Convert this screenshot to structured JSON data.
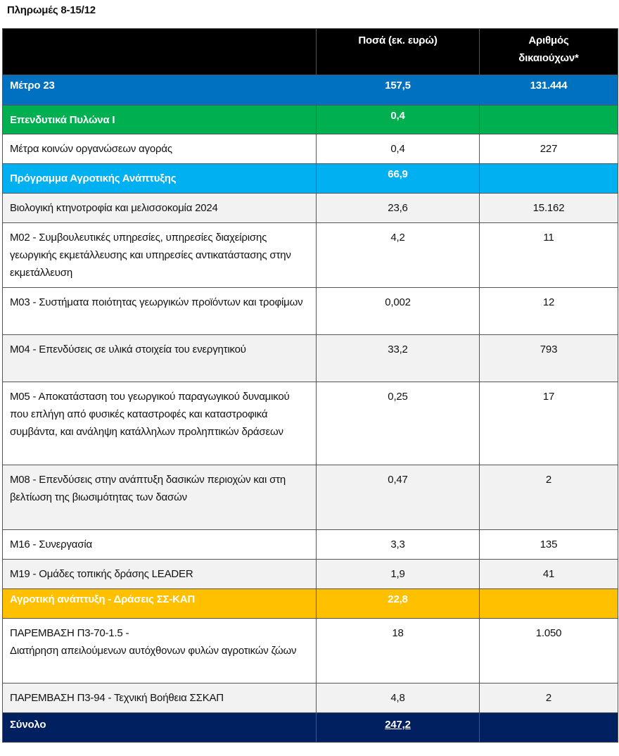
{
  "title": "Πληρωμές 8-15/12",
  "columns": [
    "",
    "Ποσά (εκ. ευρώ)",
    "Αριθμός δικαιούχων*"
  ],
  "colors": {
    "header": "#000000",
    "metro23": "#0070c0",
    "pillar1": "#00b050",
    "rural_program": "#00b0f0",
    "ss_kap": "#ffc000",
    "total": "#002060",
    "alt_row": "#f2f2f2"
  },
  "rows": [
    {
      "label": "Μέτρο 23",
      "amount": "157,5",
      "beneficiaries": "131.444",
      "type": "category",
      "color": "#0070c0"
    },
    {
      "label": "Επενδυτικά Πυλώνα Ι",
      "amount": "0,4",
      "beneficiaries": "",
      "type": "category",
      "color": "#00b050"
    },
    {
      "label": "Μέτρα κοινών οργανώσεων αγοράς",
      "amount": "0,4",
      "beneficiaries": "227",
      "type": "white"
    },
    {
      "label": "Πρόγραμμα Αγροτικής Ανάπτυξης",
      "amount": "66,9",
      "beneficiaries": "",
      "type": "category",
      "color": "#00b0f0"
    },
    {
      "label": "Βιολογική κτηνοτροφία και μελισσοκομία 2024",
      "amount": "23,6",
      "beneficiaries": "15.162",
      "type": "gray"
    },
    {
      "label": "Μ02 - Συμβουλευτικές υπηρεσίες, υπηρεσίες διαχείρισης γεωργικής εκμετάλλευσης και υπηρεσίες αντικατάστασης στην εκμετάλλευση",
      "amount": "4,2",
      "beneficiaries": "11",
      "type": "white"
    },
    {
      "label": "Μ03 - Συστήματα ποιότητας γεωργικών προϊόντων και τροφίμων",
      "amount": "0,002",
      "beneficiaries": "12",
      "type": "white"
    },
    {
      "label": "Μ04 - Επενδύσεις σε υλικά στοιχεία του ενεργητικού",
      "amount": "33,2",
      "beneficiaries": "793",
      "type": "gray"
    },
    {
      "label": "Μ05 - Αποκατάσταση του γεωργικού παραγωγικού δυναμικού που επλήγη από φυσικές καταστροφές και καταστροφικά συμβάντα, και ανάληψη κατάλληλων προληπτικών δράσεων",
      "amount": "0,25",
      "beneficiaries": "17",
      "type": "white"
    },
    {
      "label": "Μ08 - Επενδύσεις στην ανάπτυξη δασικών περιοχών και στη βελτίωση της βιωσιμότητας των δασών",
      "amount": "0,47",
      "beneficiaries": "2",
      "type": "gray"
    },
    {
      "label": "Μ16 - Συνεργασία",
      "amount": "3,3",
      "beneficiaries": "135",
      "type": "white"
    },
    {
      "label": "Μ19 - Ομάδες τοπικής δράσης LEADER",
      "amount": "1,9",
      "beneficiaries": "41",
      "type": "gray"
    },
    {
      "label": "Αγροτική ανάπτυξη - Δράσεις ΣΣ-ΚΑΠ",
      "amount": "22,8",
      "beneficiaries": "",
      "type": "category",
      "color": "#ffc000"
    },
    {
      "label": "ΠΑΡΕΜΒΑΣΗ Π3-70-1.5 -\nΔιατήρηση απειλούμενων αυτόχθονων φυλών αγροτικών ζώων",
      "amount": "18",
      "beneficiaries": "1.050",
      "type": "white"
    },
    {
      "label": "ΠΑΡΕΜΒΑΣΗ Π3-94  - Τεχνική Βοήθεια ΣΣΚΑΠ",
      "amount": "4,8",
      "beneficiaries": "2",
      "type": "gray"
    },
    {
      "label": "Σύνολο",
      "amount": "247,2",
      "beneficiaries": "",
      "type": "total",
      "color": "#002060"
    }
  ]
}
